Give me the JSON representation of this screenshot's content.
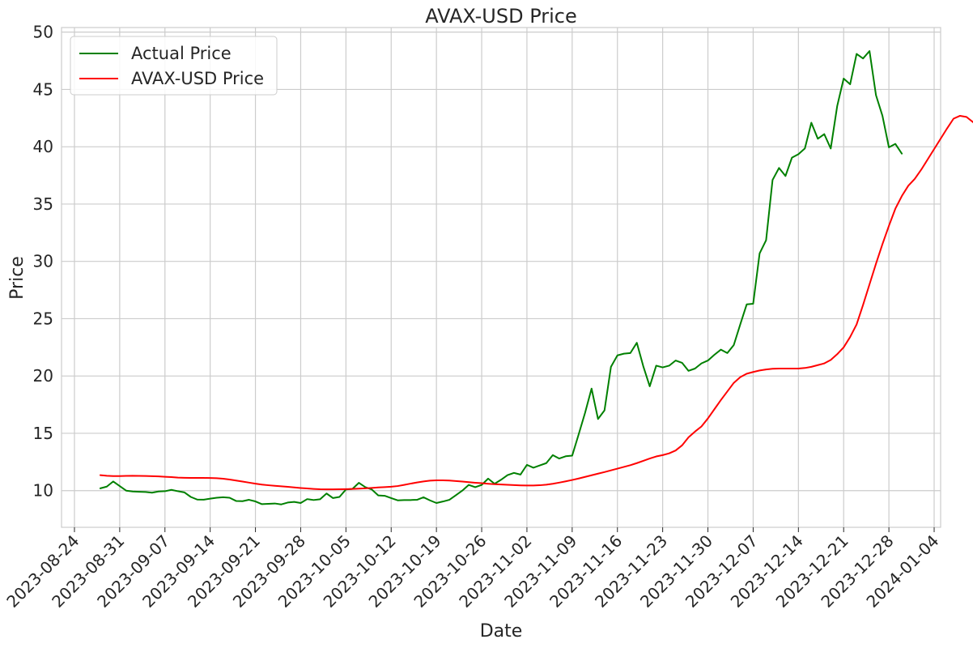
{
  "chart_data": {
    "type": "line",
    "title": "AVAX-USD Price",
    "xlabel": "Date",
    "ylabel": "Price",
    "x_ticks": [
      "2023-08-24",
      "2023-08-31",
      "2023-09-07",
      "2023-09-14",
      "2023-09-21",
      "2023-09-28",
      "2023-10-05",
      "2023-10-12",
      "2023-10-19",
      "2023-10-26",
      "2023-11-02",
      "2023-11-09",
      "2023-11-16",
      "2023-11-23",
      "2023-11-30",
      "2023-12-07",
      "2023-12-14",
      "2023-12-21",
      "2023-12-28",
      "2024-01-04"
    ],
    "y_ticks": [
      10,
      15,
      20,
      25,
      30,
      35,
      40,
      45,
      50
    ],
    "xlim": [
      "2023-08-22",
      "2024-01-05"
    ],
    "ylim": [
      6.8,
      50.4
    ],
    "grid": true,
    "legend_position": "top-left",
    "series": [
      {
        "name": "Actual Price",
        "color": "#008000",
        "start_date": "2023-08-28",
        "values": [
          10.2,
          10.35,
          10.8,
          10.4,
          10.0,
          9.93,
          9.9,
          9.88,
          9.82,
          9.93,
          9.95,
          10.07,
          9.95,
          9.85,
          9.45,
          9.22,
          9.21,
          9.3,
          9.38,
          9.42,
          9.38,
          9.1,
          9.08,
          9.2,
          9.06,
          8.82,
          8.85,
          8.88,
          8.8,
          8.96,
          9.02,
          8.92,
          9.26,
          9.18,
          9.25,
          9.75,
          9.35,
          9.45,
          10.1,
          10.15,
          10.68,
          10.3,
          10.1,
          9.58,
          9.55,
          9.35,
          9.15,
          9.18,
          9.18,
          9.2,
          9.42,
          9.15,
          8.92,
          9.05,
          9.2,
          9.6,
          10.0,
          10.5,
          10.3,
          10.5,
          11.05,
          10.6,
          10.95,
          11.35,
          11.55,
          11.4,
          12.25,
          12.0,
          12.2,
          12.4,
          13.1,
          12.8,
          13.0,
          13.05,
          14.9,
          16.8,
          18.9,
          16.25,
          17.0,
          20.8,
          21.8,
          21.95,
          22.0,
          22.9,
          20.85,
          19.1,
          20.9,
          20.75,
          20.9,
          21.35,
          21.15,
          20.45,
          20.65,
          21.1,
          21.35,
          21.85,
          22.3,
          22.0,
          22.7,
          24.5,
          26.25,
          26.3,
          30.7,
          31.85,
          37.1,
          38.15,
          37.45,
          39.05,
          39.35,
          39.85,
          42.1,
          40.7,
          41.1,
          39.85,
          43.55,
          45.95,
          45.45,
          48.1,
          47.7,
          48.35,
          44.5,
          42.7,
          39.95,
          40.25,
          39.4
        ]
      },
      {
        "name": "AVAX-USD Price",
        "color": "#ff0000",
        "start_date": "2023-08-28",
        "values": [
          11.35,
          11.3,
          11.27,
          11.27,
          11.29,
          11.3,
          11.29,
          11.28,
          11.26,
          11.24,
          11.21,
          11.18,
          11.14,
          11.12,
          11.11,
          11.11,
          11.11,
          11.1,
          11.08,
          11.04,
          10.97,
          10.88,
          10.79,
          10.7,
          10.61,
          10.53,
          10.47,
          10.42,
          10.38,
          10.33,
          10.28,
          10.23,
          10.19,
          10.15,
          10.12,
          10.11,
          10.11,
          10.12,
          10.13,
          10.15,
          10.17,
          10.2,
          10.24,
          10.28,
          10.31,
          10.34,
          10.4,
          10.5,
          10.61,
          10.71,
          10.8,
          10.87,
          10.9,
          10.9,
          10.88,
          10.84,
          10.79,
          10.74,
          10.69,
          10.65,
          10.6,
          10.56,
          10.54,
          10.51,
          10.48,
          10.46,
          10.45,
          10.45,
          10.47,
          10.52,
          10.6,
          10.7,
          10.81,
          10.93,
          11.06,
          11.2,
          11.34,
          11.48,
          11.62,
          11.77,
          11.92,
          12.07,
          12.22,
          12.4,
          12.6,
          12.8,
          12.98,
          13.1,
          13.25,
          13.5,
          13.95,
          14.65,
          15.15,
          15.6,
          16.3,
          17.1,
          17.9,
          18.65,
          19.4,
          19.9,
          20.2,
          20.35,
          20.48,
          20.57,
          20.63,
          20.65,
          20.65,
          20.65,
          20.65,
          20.7,
          20.8,
          20.95,
          21.1,
          21.4,
          21.9,
          22.5,
          23.4,
          24.5,
          26.2,
          28.0,
          29.8,
          31.5,
          33.1,
          34.6,
          35.7,
          36.6,
          37.2,
          38.0,
          38.9,
          39.8,
          40.7,
          41.6,
          42.45,
          42.7,
          42.6,
          42.15,
          41.7
        ]
      }
    ]
  }
}
